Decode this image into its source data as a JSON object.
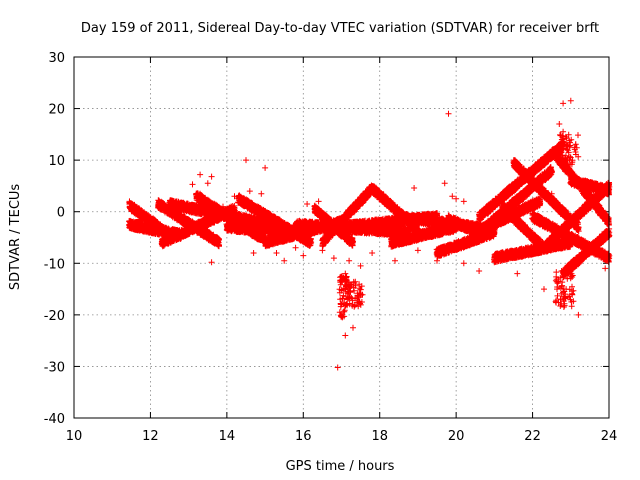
{
  "chart_data": {
    "type": "scatter",
    "title": "Day 159 of 2011, Sidereal Day-to-day VTEC variation (SDTVAR) for receiver brft",
    "xlabel": "GPS time / hours",
    "ylabel": "SDTVAR / TECUs",
    "xlim": [
      10,
      24
    ],
    "ylim": [
      -40,
      30
    ],
    "xticks": [
      "10",
      "12",
      "14",
      "16",
      "18",
      "20",
      "22",
      "24"
    ],
    "yticks": [
      "30",
      "20",
      "10",
      "0",
      "-10",
      "-20",
      "-30",
      "-40"
    ],
    "grid": true,
    "marker": "+",
    "color": "#ff0000",
    "series": [
      {
        "name": "",
        "bands": [
          {
            "x0": 11.45,
            "x1": 12.6,
            "y0": 1.2,
            "y1": -5.0
          },
          {
            "x0": 11.45,
            "x1": 12.8,
            "y0": -2.5,
            "y1": -4.5
          },
          {
            "x0": 12.2,
            "x1": 13.8,
            "y0": 1.5,
            "y1": -6.0
          },
          {
            "x0": 12.3,
            "x1": 14.2,
            "y0": -6.0,
            "y1": 0.5
          },
          {
            "x0": 12.5,
            "x1": 15.5,
            "y0": 1.5,
            "y1": -3.0
          },
          {
            "x0": 13.2,
            "x1": 15.0,
            "y0": 3.0,
            "y1": -5.5
          },
          {
            "x0": 14.0,
            "x1": 16.0,
            "y0": -3.0,
            "y1": -4.0
          },
          {
            "x0": 14.3,
            "x1": 16.2,
            "y0": 2.5,
            "y1": -6.0
          },
          {
            "x0": 15.0,
            "x1": 17.0,
            "y0": -6.0,
            "y1": -2.0
          },
          {
            "x0": 15.8,
            "x1": 18.8,
            "y0": -2.5,
            "y1": -4.0
          },
          {
            "x0": 16.5,
            "x1": 17.8,
            "y0": -6.0,
            "y1": 4.5
          },
          {
            "x0": 17.8,
            "x1": 19.0,
            "y0": 4.5,
            "y1": -3.5
          },
          {
            "x0": 16.3,
            "x1": 17.3,
            "y0": 0.5,
            "y1": -6.0
          },
          {
            "x0": 17.0,
            "x1": 19.5,
            "y0": -3.0,
            "y1": -1.0
          },
          {
            "x0": 18.3,
            "x1": 20.0,
            "y0": -6.0,
            "y1": -3.0
          },
          {
            "x0": 18.5,
            "x1": 21.0,
            "y0": -1.0,
            "y1": -3.5
          },
          {
            "x0": 19.5,
            "x1": 21.0,
            "y0": -8.0,
            "y1": -4.0
          },
          {
            "x0": 19.8,
            "x1": 20.6,
            "y0": -1.5,
            "y1": -4.0
          },
          {
            "x0": 20.3,
            "x1": 22.5,
            "y0": -6.0,
            "y1": 8.0
          },
          {
            "x0": 20.6,
            "x1": 22.8,
            "y0": -1.0,
            "y1": 13.0
          },
          {
            "x0": 21.0,
            "x1": 23.0,
            "y0": -9.0,
            "y1": -6.0
          },
          {
            "x0": 21.2,
            "x1": 22.3,
            "y0": 1.0,
            "y1": -7.0
          },
          {
            "x0": 21.5,
            "x1": 23.2,
            "y0": 9.5,
            "y1": -3.0
          },
          {
            "x0": 22.0,
            "x1": 24.0,
            "y0": -1.0,
            "y1": -9.0
          },
          {
            "x0": 22.3,
            "x1": 24.0,
            "y0": -7.0,
            "y1": 5.0
          },
          {
            "x0": 22.6,
            "x1": 24.0,
            "y0": 11.0,
            "y1": -2.0
          },
          {
            "x0": 22.8,
            "x1": 24.0,
            "y0": -12.0,
            "y1": -4.0
          },
          {
            "x0": 23.0,
            "x1": 24.0,
            "y0": 6.0,
            "y1": 4.0
          },
          {
            "x0": 20.8,
            "x1": 22.2,
            "y0": -3.0,
            "y1": 2.0
          }
        ],
        "scatter": [
          [
            11.7,
            -1.5
          ],
          [
            12.5,
            1.8
          ],
          [
            13.1,
            5.3
          ],
          [
            13.3,
            7.2
          ],
          [
            13.3,
            3.5
          ],
          [
            13.5,
            5.5
          ],
          [
            13.6,
            6.8
          ],
          [
            13.6,
            -9.8
          ],
          [
            13.9,
            1.0
          ],
          [
            14.2,
            3.0
          ],
          [
            14.5,
            10.0
          ],
          [
            14.6,
            4.0
          ],
          [
            14.7,
            -8.0
          ],
          [
            14.9,
            3.5
          ],
          [
            15.0,
            8.5
          ],
          [
            15.1,
            -6.5
          ],
          [
            15.3,
            -8.0
          ],
          [
            15.5,
            -9.5
          ],
          [
            15.8,
            -7.0
          ],
          [
            16.0,
            -8.5
          ],
          [
            16.1,
            1.5
          ],
          [
            16.4,
            2.0
          ],
          [
            16.5,
            -7.5
          ],
          [
            16.8,
            -9.0
          ],
          [
            16.9,
            -30.2
          ],
          [
            17.1,
            -24.0
          ],
          [
            17.0,
            -18.0
          ],
          [
            17.1,
            -12.0
          ],
          [
            17.3,
            -22.5
          ],
          [
            17.2,
            -9.5
          ],
          [
            17.5,
            -10.5
          ],
          [
            17.8,
            -8.0
          ],
          [
            18.4,
            -9.5
          ],
          [
            18.9,
            4.6
          ],
          [
            19.0,
            -7.5
          ],
          [
            19.5,
            -9.5
          ],
          [
            19.7,
            5.5
          ],
          [
            19.8,
            19.0
          ],
          [
            19.9,
            3.0
          ],
          [
            20.0,
            2.5
          ],
          [
            20.2,
            -10.0
          ],
          [
            20.2,
            2.0
          ],
          [
            20.6,
            -11.5
          ],
          [
            21.0,
            -9.0
          ],
          [
            21.6,
            -12.0
          ],
          [
            22.3,
            -15.0
          ],
          [
            22.5,
            3.5
          ],
          [
            22.7,
            17.0
          ],
          [
            22.8,
            15.5
          ],
          [
            22.8,
            21.0
          ],
          [
            23.0,
            21.5
          ],
          [
            23.0,
            10.5
          ],
          [
            23.2,
            -20.0
          ],
          [
            23.5,
            -8.0
          ],
          [
            23.9,
            -11.0
          ]
        ],
        "clusters": [
          {
            "x0": 16.95,
            "x1": 17.15,
            "y0": -20.5,
            "y1": -12.5
          },
          {
            "x0": 17.15,
            "x1": 17.55,
            "y0": -19.0,
            "y1": -13.5
          },
          {
            "x0": 22.6,
            "x1": 23.1,
            "y0": -18.5,
            "y1": -11.5
          },
          {
            "x0": 22.7,
            "x1": 23.2,
            "y0": 9.0,
            "y1": 15.0
          }
        ]
      }
    ]
  }
}
